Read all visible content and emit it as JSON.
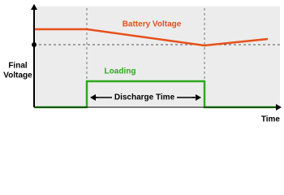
{
  "labels": {
    "battery_voltage": "Battery Voltage",
    "loading": "Loading",
    "discharge_time": "Discharge Time",
    "final_voltage": [
      "Final",
      "Voltage"
    ],
    "x_axis": "Time"
  }
}
